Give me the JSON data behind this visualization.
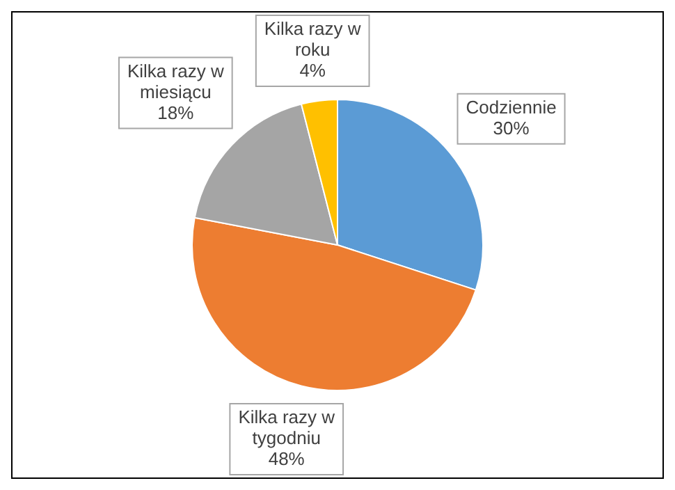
{
  "chart_data": {
    "type": "pie",
    "categories": [
      "Codziennie",
      "Kilka razy w tygodniu",
      "Kilka razy w miesiącu",
      "Kilka razy w roku"
    ],
    "values": [
      30,
      48,
      18,
      4
    ],
    "value_labels": [
      "30%",
      "48%",
      "18%",
      "4%"
    ],
    "colors": [
      "#5b9bd5",
      "#ed7d31",
      "#a5a5a5",
      "#ffc000"
    ],
    "legend": false
  }
}
